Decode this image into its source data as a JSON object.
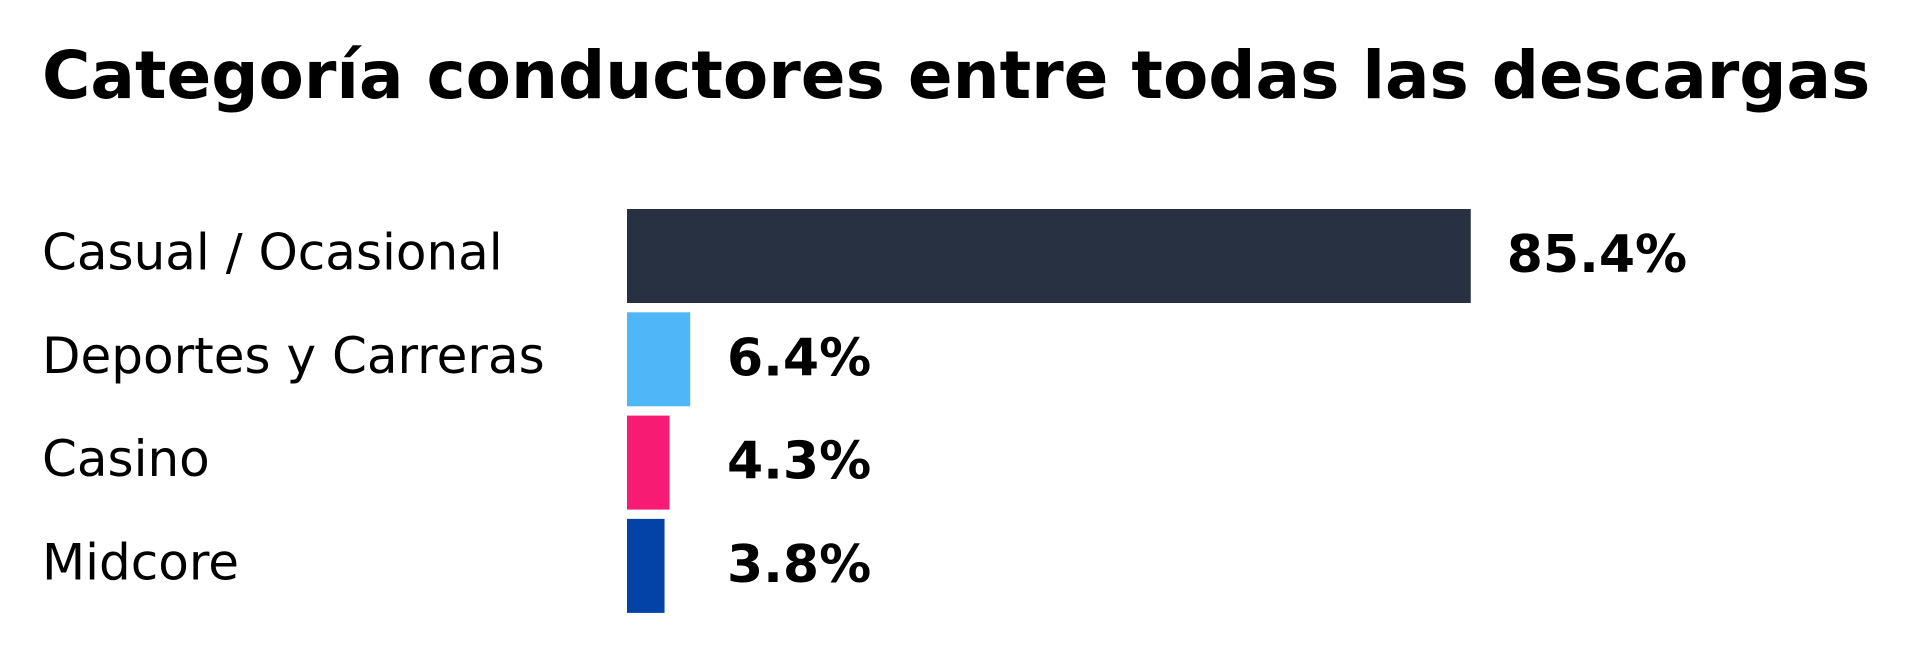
{
  "chart_data": {
    "type": "bar",
    "orientation": "horizontal",
    "title": "Categoría conductores entre todas las descargas",
    "categories": [
      "Casual / Ocasional",
      "Deportes y Carreras",
      "Casino",
      "Midcore"
    ],
    "values": [
      85.4,
      6.4,
      4.3,
      3.8
    ],
    "value_labels": [
      "85.4%",
      "6.4%",
      "4.3%",
      "3.8%"
    ],
    "colors": [
      "#273142",
      "#4fb6f7",
      "#f81b74",
      "#0343a8"
    ]
  }
}
